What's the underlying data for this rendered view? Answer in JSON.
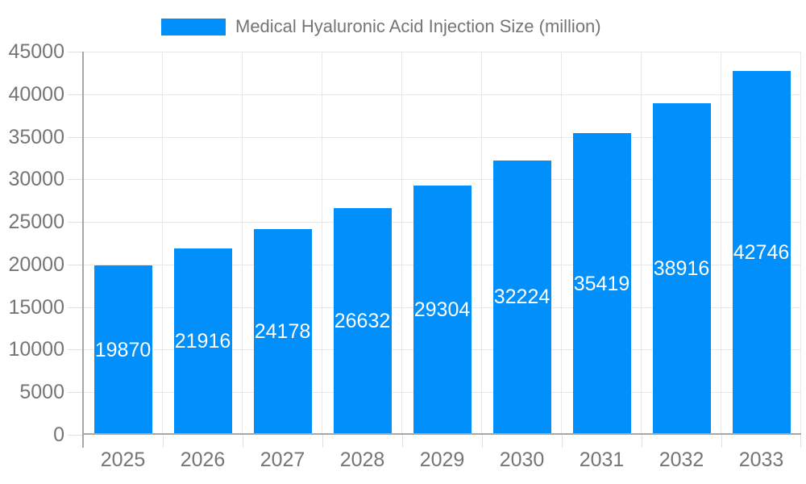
{
  "legend": {
    "series_label": "Medical Hyaluronic Acid Injection Size (million)"
  },
  "chart_data": {
    "type": "bar",
    "title": "Medical Hyaluronic Acid Injection Size (million)",
    "categories": [
      "2025",
      "2026",
      "2027",
      "2028",
      "2029",
      "2030",
      "2031",
      "2032",
      "2033"
    ],
    "values": [
      19870,
      21916,
      24178,
      26632,
      29304,
      32224,
      35419,
      38916,
      42746
    ],
    "xlabel": "",
    "ylabel": "",
    "ylim": [
      0,
      45000
    ],
    "ytick_step": 5000,
    "grid": true,
    "legend_position": "top",
    "value_labels": "inside-center"
  },
  "colors": {
    "bar": "#008FFB",
    "bar_label_text": "#ffffff",
    "axis_text": "#757575",
    "grid_line": "#e7e7e7",
    "tick_line": "#e0e0e0",
    "axis_line": "#a8a8a8",
    "background": "#ffffff"
  }
}
